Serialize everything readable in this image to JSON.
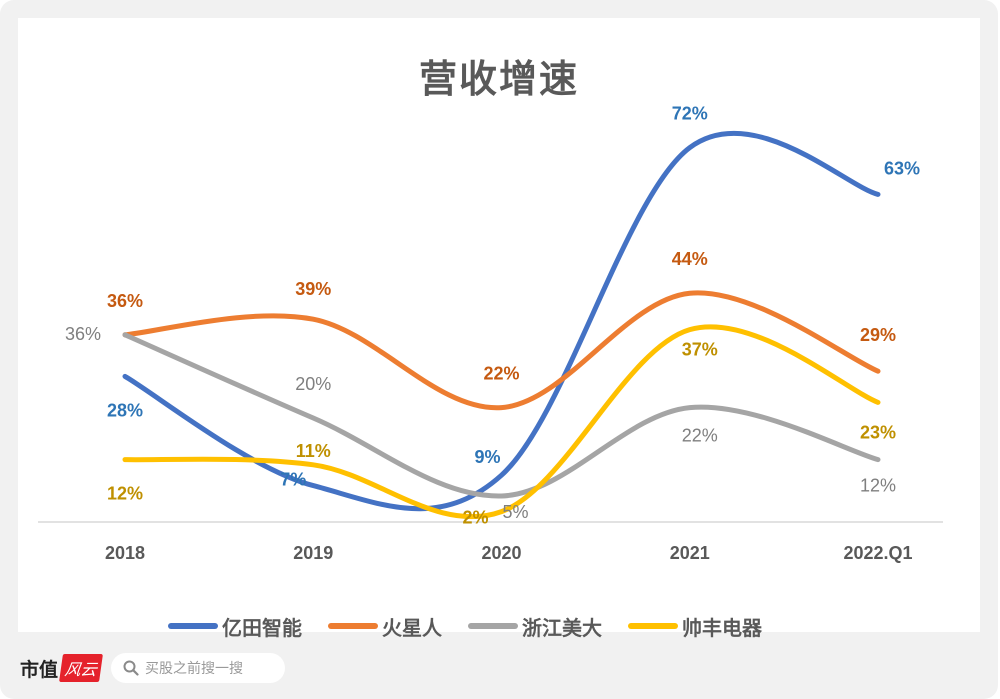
{
  "chart_data": {
    "type": "line",
    "title": "营收增速",
    "categories": [
      "2018",
      "2019",
      "2020",
      "2021",
      "2022.Q1"
    ],
    "ylim": [
      0,
      75
    ],
    "grid": false,
    "legend_position": "bottom",
    "series": [
      {
        "name": "亿田智能",
        "color": "#4472C4",
        "label_color": "#2E75B6",
        "values": [
          28,
          7,
          9,
          72,
          63
        ],
        "labels": [
          "28%",
          "7%",
          "9%",
          "72%",
          "63%"
        ]
      },
      {
        "name": "火星人",
        "color": "#ED7D31",
        "label_color": "#C55A11",
        "values": [
          36,
          39,
          22,
          44,
          29
        ],
        "labels": [
          "36%",
          "39%",
          "22%",
          "44%",
          "29%"
        ]
      },
      {
        "name": "浙江美大",
        "color": "#A5A5A5",
        "label_color": "#7F7F7F",
        "values": [
          36,
          20,
          5,
          22,
          12
        ],
        "labels": [
          "36%",
          "20%",
          "5%",
          "22%",
          "12%"
        ]
      },
      {
        "name": "帅丰电器",
        "color": "#FFC000",
        "label_color": "#BF9000",
        "values": [
          12,
          11,
          2,
          37,
          23
        ],
        "labels": [
          "12%",
          "11%",
          "2%",
          "37%",
          "23%"
        ]
      }
    ]
  },
  "footer": {
    "brand_text": "市值",
    "brand_badge": "风云",
    "search_placeholder": "买股之前搜一搜",
    "search_icon": "search-icon"
  }
}
